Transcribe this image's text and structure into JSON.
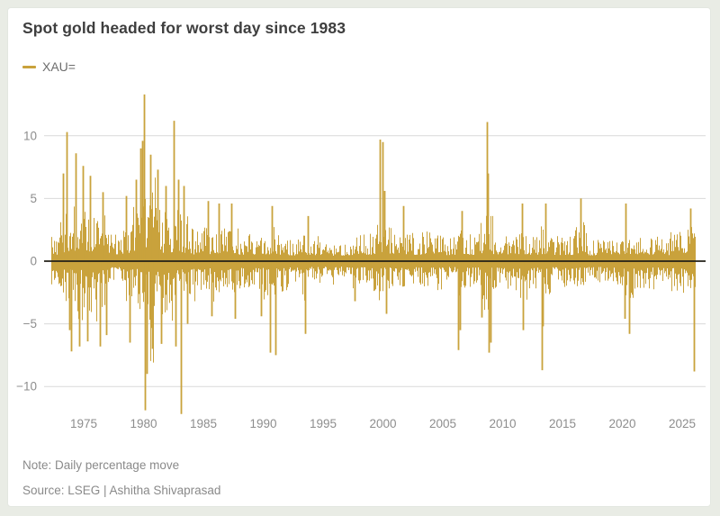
{
  "header": {
    "title": "Spot gold headed for worst day since 1983"
  },
  "legend": {
    "label": "XAU=",
    "swatch": "line"
  },
  "footer": {
    "note": "Note: Daily percentage move",
    "source": "Source: LSEG | Ashitha Shivaprasad"
  },
  "colors": {
    "page_bg": "#e9ece5",
    "card_bg": "#ffffff",
    "bar": "#c9a23c",
    "zero_line": "#222018",
    "gridline": "#d9d9d9",
    "tick_label": "#8d8d8d",
    "title_text": "#3e3e3e"
  },
  "chart_data": {
    "type": "bar",
    "title": "Spot gold headed for worst day since 1983",
    "series_name": "XAU=",
    "unit": "percent",
    "xlabel": "",
    "ylabel": "",
    "grid": "horizontal",
    "legend_position": "top-left",
    "xlim": [
      1972.2,
      2026.1
    ],
    "ylim": [
      -12.5,
      14
    ],
    "y_ticks": [
      10,
      5,
      0,
      -5,
      -10
    ],
    "y_tick_labels": [
      "10",
      "5",
      "0",
      "−5",
      "−10"
    ],
    "x_ticks": [
      1975,
      1980,
      1985,
      1990,
      1995,
      2000,
      2005,
      2010,
      2015,
      2020,
      2025
    ],
    "x_tick_labels": [
      "1975",
      "1980",
      "1985",
      "1990",
      "1995",
      "2000",
      "2005",
      "2010",
      "2015",
      "2020",
      "2025"
    ],
    "zero_line": true,
    "volatility_envelope_by_year": [
      [
        1972,
        2.0,
        1.5
      ],
      [
        1973,
        4.5,
        3.0
      ],
      [
        1974,
        5.5,
        4.5
      ],
      [
        1975,
        4.0,
        4.0
      ],
      [
        1976,
        3.0,
        3.5
      ],
      [
        1977,
        1.8,
        1.6
      ],
      [
        1978,
        2.8,
        3.0
      ],
      [
        1979,
        4.5,
        3.5
      ],
      [
        1980,
        6.5,
        6.0
      ],
      [
        1981,
        4.0,
        4.0
      ],
      [
        1982,
        4.5,
        4.0
      ],
      [
        1983,
        3.5,
        3.5
      ],
      [
        1984,
        2.2,
        2.4
      ],
      [
        1985,
        2.6,
        2.6
      ],
      [
        1986,
        2.6,
        2.2
      ],
      [
        1987,
        2.6,
        2.6
      ],
      [
        1988,
        1.8,
        2.0
      ],
      [
        1989,
        2.0,
        2.4
      ],
      [
        1990,
        2.4,
        2.8
      ],
      [
        1991,
        1.8,
        2.2
      ],
      [
        1992,
        1.4,
        1.6
      ],
      [
        1993,
        2.0,
        2.4
      ],
      [
        1994,
        1.3,
        1.4
      ],
      [
        1995,
        1.0,
        1.0
      ],
      [
        1996,
        1.0,
        1.1
      ],
      [
        1997,
        1.6,
        1.9
      ],
      [
        1998,
        1.9,
        1.8
      ],
      [
        1999,
        2.6,
        2.2
      ],
      [
        2000,
        2.6,
        2.0
      ],
      [
        2001,
        2.2,
        1.8
      ],
      [
        2002,
        1.9,
        1.6
      ],
      [
        2003,
        2.1,
        1.9
      ],
      [
        2004,
        1.8,
        2.0
      ],
      [
        2005,
        1.6,
        1.4
      ],
      [
        2006,
        2.4,
        2.8
      ],
      [
        2007,
        1.9,
        1.8
      ],
      [
        2008,
        3.6,
        3.8
      ],
      [
        2009,
        2.4,
        2.2
      ],
      [
        2010,
        1.9,
        2.1
      ],
      [
        2011,
        2.6,
        2.8
      ],
      [
        2012,
        1.8,
        1.9
      ],
      [
        2013,
        2.6,
        3.2
      ],
      [
        2014,
        1.8,
        1.6
      ],
      [
        2015,
        1.8,
        1.7
      ],
      [
        2016,
        2.6,
        2.0
      ],
      [
        2017,
        1.3,
        1.2
      ],
      [
        2018,
        1.3,
        1.4
      ],
      [
        2019,
        1.9,
        1.6
      ],
      [
        2020,
        2.6,
        3.0
      ],
      [
        2021,
        1.6,
        2.1
      ],
      [
        2022,
        1.9,
        2.0
      ],
      [
        2023,
        1.5,
        1.5
      ],
      [
        2024,
        2.2,
        2.1
      ],
      [
        2025,
        2.6,
        2.4
      ]
    ],
    "notable_daily_moves": [
      [
        1973.3,
        7.0
      ],
      [
        1973.55,
        10.3
      ],
      [
        1973.8,
        -5.5
      ],
      [
        1973.95,
        -7.2
      ],
      [
        1974.3,
        8.6
      ],
      [
        1974.6,
        -6.8
      ],
      [
        1974.95,
        7.6
      ],
      [
        1975.3,
        -6.4
      ],
      [
        1975.55,
        6.8
      ],
      [
        1976.35,
        -6.8
      ],
      [
        1976.6,
        5.5
      ],
      [
        1976.85,
        -5.9
      ],
      [
        1978.5,
        5.2
      ],
      [
        1978.8,
        -6.5
      ],
      [
        1979.35,
        6.5
      ],
      [
        1979.7,
        9.0
      ],
      [
        1979.9,
        9.6
      ],
      [
        1980.0,
        13.3
      ],
      [
        1980.1,
        -11.9
      ],
      [
        1980.3,
        -9.0
      ],
      [
        1980.55,
        8.5
      ],
      [
        1980.75,
        -7.0
      ],
      [
        1981.2,
        7.3
      ],
      [
        1981.5,
        -6.6
      ],
      [
        1981.85,
        6.0
      ],
      [
        1982.55,
        11.2
      ],
      [
        1982.7,
        -6.8
      ],
      [
        1982.9,
        6.5
      ],
      [
        1983.1,
        -12.2
      ],
      [
        1983.35,
        6.0
      ],
      [
        1983.65,
        -5.0
      ],
      [
        1985.4,
        4.8
      ],
      [
        1985.7,
        -4.4
      ],
      [
        1986.3,
        4.6
      ],
      [
        1987.3,
        4.6
      ],
      [
        1987.65,
        -4.6
      ],
      [
        1989.8,
        -4.4
      ],
      [
        1990.6,
        -7.3
      ],
      [
        1990.75,
        4.4
      ],
      [
        1991.05,
        -7.5
      ],
      [
        1993.5,
        -5.8
      ],
      [
        1993.7,
        3.6
      ],
      [
        1997.6,
        -3.2
      ],
      [
        1999.73,
        9.7
      ],
      [
        1999.95,
        9.5
      ],
      [
        2000.1,
        5.6
      ],
      [
        2000.3,
        -4.2
      ],
      [
        2001.7,
        4.4
      ],
      [
        2006.3,
        -7.1
      ],
      [
        2006.42,
        -5.5
      ],
      [
        2006.6,
        4.0
      ],
      [
        2008.2,
        -4.5
      ],
      [
        2008.68,
        11.1
      ],
      [
        2008.74,
        7.0
      ],
      [
        2008.82,
        -7.3
      ],
      [
        2008.95,
        -6.5
      ],
      [
        2011.6,
        4.6
      ],
      [
        2011.72,
        -5.5
      ],
      [
        2013.25,
        -8.7
      ],
      [
        2013.35,
        -5.2
      ],
      [
        2013.6,
        4.6
      ],
      [
        2016.48,
        5.0
      ],
      [
        2020.2,
        -4.6
      ],
      [
        2020.28,
        4.6
      ],
      [
        2020.6,
        -5.8
      ],
      [
        2025.7,
        4.2
      ],
      [
        2025.98,
        -8.8
      ]
    ]
  }
}
